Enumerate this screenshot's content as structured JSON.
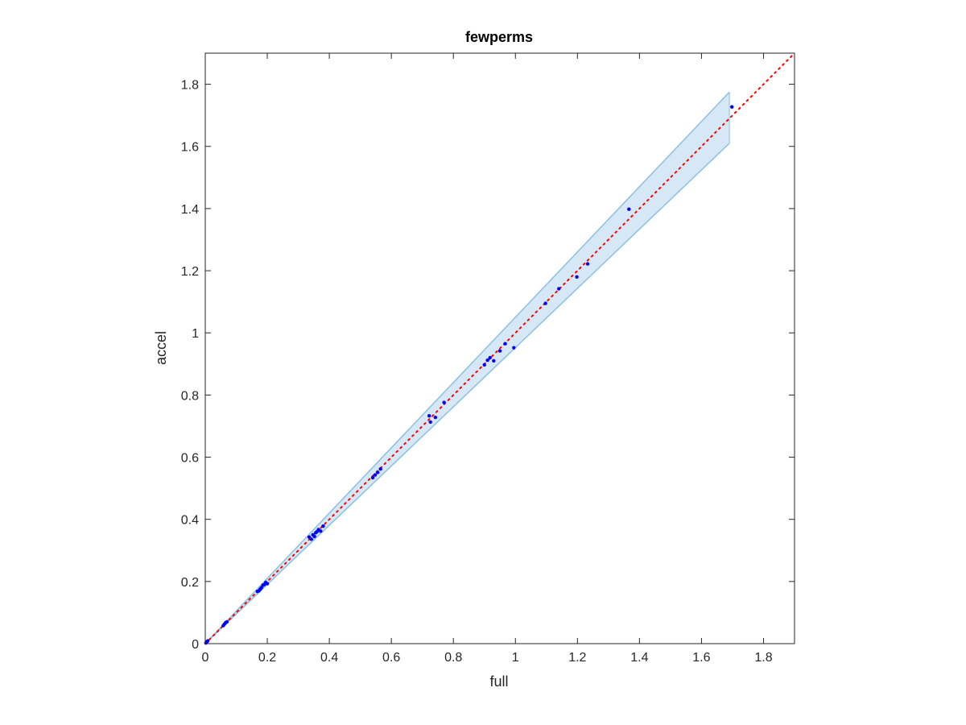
{
  "chart_data": {
    "type": "scatter",
    "title": "fewperms",
    "xlabel": "full",
    "ylabel": "accel",
    "xlim": [
      0,
      1.9
    ],
    "ylim": [
      0,
      1.9
    ],
    "xticks": [
      "0",
      "0.2",
      "0.4",
      "0.6",
      "0.8",
      "1",
      "1.2",
      "1.4",
      "1.6",
      "1.8"
    ],
    "yticks": [
      "0",
      "0.2",
      "0.4",
      "0.6",
      "0.8",
      "1",
      "1.2",
      "1.4",
      "1.6",
      "1.8"
    ],
    "xtick_values": [
      0,
      0.2,
      0.4,
      0.6,
      0.8,
      1.0,
      1.2,
      1.4,
      1.6,
      1.8
    ],
    "ytick_values": [
      0,
      0.2,
      0.4,
      0.6,
      0.8,
      1.0,
      1.2,
      1.4,
      1.6,
      1.8
    ],
    "grid": false,
    "points": [
      {
        "x": 0.002,
        "y": 0.002
      },
      {
        "x": 0.005,
        "y": 0.006
      },
      {
        "x": 0.008,
        "y": 0.009
      },
      {
        "x": 0.058,
        "y": 0.058
      },
      {
        "x": 0.062,
        "y": 0.063
      },
      {
        "x": 0.066,
        "y": 0.068
      },
      {
        "x": 0.07,
        "y": 0.07
      },
      {
        "x": 0.168,
        "y": 0.168
      },
      {
        "x": 0.173,
        "y": 0.17
      },
      {
        "x": 0.177,
        "y": 0.175
      },
      {
        "x": 0.181,
        "y": 0.18
      },
      {
        "x": 0.186,
        "y": 0.188
      },
      {
        "x": 0.19,
        "y": 0.19
      },
      {
        "x": 0.195,
        "y": 0.197
      },
      {
        "x": 0.2,
        "y": 0.193
      },
      {
        "x": 0.335,
        "y": 0.343
      },
      {
        "x": 0.342,
        "y": 0.336
      },
      {
        "x": 0.347,
        "y": 0.35
      },
      {
        "x": 0.352,
        "y": 0.345
      },
      {
        "x": 0.356,
        "y": 0.357
      },
      {
        "x": 0.36,
        "y": 0.36
      },
      {
        "x": 0.365,
        "y": 0.367
      },
      {
        "x": 0.372,
        "y": 0.362
      },
      {
        "x": 0.38,
        "y": 0.378
      },
      {
        "x": 0.54,
        "y": 0.534
      },
      {
        "x": 0.548,
        "y": 0.543
      },
      {
        "x": 0.556,
        "y": 0.551
      },
      {
        "x": 0.565,
        "y": 0.562
      },
      {
        "x": 0.722,
        "y": 0.733
      },
      {
        "x": 0.726,
        "y": 0.713
      },
      {
        "x": 0.742,
        "y": 0.728
      },
      {
        "x": 0.77,
        "y": 0.776
      },
      {
        "x": 0.9,
        "y": 0.897
      },
      {
        "x": 0.91,
        "y": 0.912
      },
      {
        "x": 0.918,
        "y": 0.92
      },
      {
        "x": 0.93,
        "y": 0.91
      },
      {
        "x": 0.95,
        "y": 0.942
      },
      {
        "x": 0.967,
        "y": 0.965
      },
      {
        "x": 0.995,
        "y": 0.952
      },
      {
        "x": 1.097,
        "y": 1.095
      },
      {
        "x": 1.14,
        "y": 1.142
      },
      {
        "x": 1.198,
        "y": 1.18
      },
      {
        "x": 1.233,
        "y": 1.222
      },
      {
        "x": 1.366,
        "y": 1.398
      },
      {
        "x": 1.698,
        "y": 1.727
      }
    ],
    "identity_line": {
      "from": [
        0,
        0
      ],
      "to": [
        1.9,
        1.9
      ]
    },
    "band": {
      "upper": [
        [
          0,
          0
        ],
        [
          1.69,
          1.775
        ]
      ],
      "lower": [
        [
          0,
          0
        ],
        [
          1.69,
          1.61
        ]
      ]
    }
  },
  "colors": {
    "point": "#0000ff",
    "identity": "#ff0000",
    "band_fill": "#d6e8f5",
    "band_edge": "#8cc0e0",
    "axis": "#262626"
  }
}
